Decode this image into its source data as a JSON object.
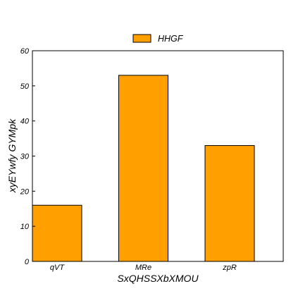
{
  "chart_data": {
    "type": "bar",
    "categories": [
      "qVT",
      "MRe",
      "zpR"
    ],
    "series": [
      {
        "name": "HHGF",
        "values": [
          16,
          53,
          33
        ],
        "color": "#ff9f00"
      }
    ],
    "xlabel": "SxQHSSXbXMOU",
    "ylabel": "xyEYwfy GYMpk",
    "ylim": [
      0,
      60
    ],
    "yticks": [
      0,
      10,
      20,
      30,
      40,
      50,
      60
    ],
    "grid": false,
    "legend_position": "top-center"
  }
}
